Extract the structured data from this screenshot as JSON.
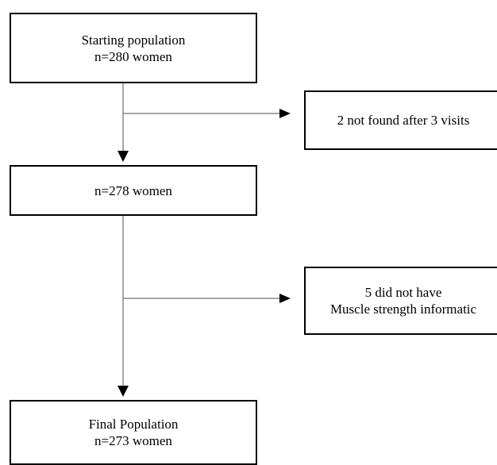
{
  "boxes": {
    "start": {
      "line1": "Starting population",
      "line2": "n=280 women"
    },
    "middle": {
      "line1": "n=278 women"
    },
    "final": {
      "line1": "Final Population",
      "line2": "n=273 women"
    },
    "exclusion1": {
      "line1": "2 not found after 3 visits"
    },
    "exclusion2": {
      "line1": "5 did not have",
      "line2": "Muscle strength informatic"
    }
  },
  "colors": {
    "line": "#888888",
    "arrowhead": "#000000",
    "border": "#000000"
  }
}
